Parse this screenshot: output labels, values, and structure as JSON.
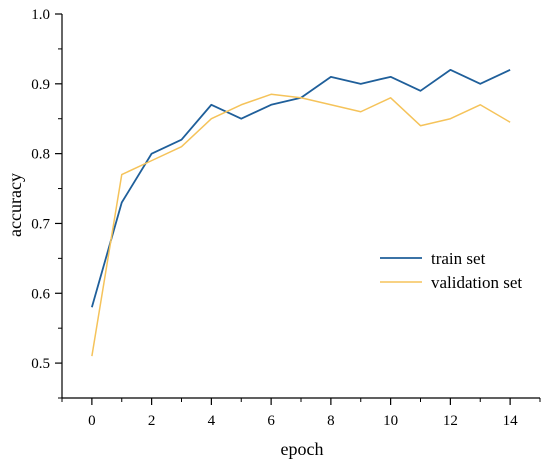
{
  "chart_data": {
    "type": "line",
    "xlabel": "epoch",
    "ylabel": "accuracy",
    "xlim": [
      -1,
      15
    ],
    "ylim": [
      0.45,
      1.0
    ],
    "x_ticks": [
      0,
      2,
      4,
      6,
      8,
      10,
      12,
      14
    ],
    "x_minor_ticks": [
      -1,
      1,
      3,
      5,
      7,
      9,
      11,
      13,
      15
    ],
    "y_ticks": [
      0.5,
      0.6,
      0.7,
      0.8,
      0.9,
      1.0
    ],
    "y_minor_ticks": [
      0.45,
      0.55,
      0.65,
      0.75,
      0.85,
      0.95
    ],
    "x_tick_labels": [
      "0",
      "2",
      "4",
      "6",
      "8",
      "10",
      "12",
      "14"
    ],
    "y_tick_labels": [
      "0.5",
      "0.6",
      "0.7",
      "0.8",
      "0.9",
      "1.0"
    ],
    "grid": false,
    "legend_position": "center-right",
    "x": [
      0,
      1,
      2,
      3,
      4,
      5,
      6,
      7,
      8,
      9,
      10,
      11,
      12,
      13,
      14
    ],
    "series": [
      {
        "name": "train set",
        "color": "#1f5f9a",
        "values": [
          0.58,
          0.73,
          0.8,
          0.82,
          0.87,
          0.85,
          0.87,
          0.88,
          0.91,
          0.9,
          0.91,
          0.89,
          0.92,
          0.9,
          0.92
        ]
      },
      {
        "name": "validation set",
        "color": "#f5c35a",
        "values": [
          0.51,
          0.77,
          0.79,
          0.81,
          0.85,
          0.87,
          0.885,
          0.88,
          0.87,
          0.86,
          0.88,
          0.84,
          0.85,
          0.87,
          0.845
        ]
      }
    ]
  }
}
